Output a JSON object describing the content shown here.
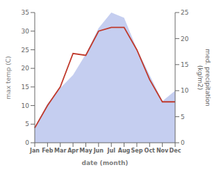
{
  "chart_data": {
    "type": "line",
    "categories": [
      "Jan",
      "Feb",
      "Mar",
      "Apr",
      "May",
      "Jun",
      "Jul",
      "Aug",
      "Sep",
      "Oct",
      "Nov",
      "Dec"
    ],
    "series": [
      {
        "type": "area",
        "color": "#c5cef0",
        "axis": "y2",
        "values": [
          3,
          7.5,
          10.5,
          13,
          17,
          22,
          25,
          24,
          18,
          13,
          8,
          10
        ]
      },
      {
        "type": "line",
        "color": "#c0392b",
        "values": [
          4,
          10,
          15,
          24,
          23.5,
          30,
          31,
          31,
          25,
          17,
          11,
          11
        ]
      }
    ],
    "xlabel": "date (month)",
    "ylabel": "max temp (C)",
    "y2label": "med. precipitation\n(kg/m2)",
    "ylim": [
      0,
      35
    ],
    "yticks": [
      0,
      5,
      10,
      15,
      20,
      25,
      30,
      35
    ],
    "y2lim": [
      0,
      25
    ],
    "y2ticks": [
      0,
      5,
      10,
      15,
      20,
      25
    ],
    "grid": false
  }
}
